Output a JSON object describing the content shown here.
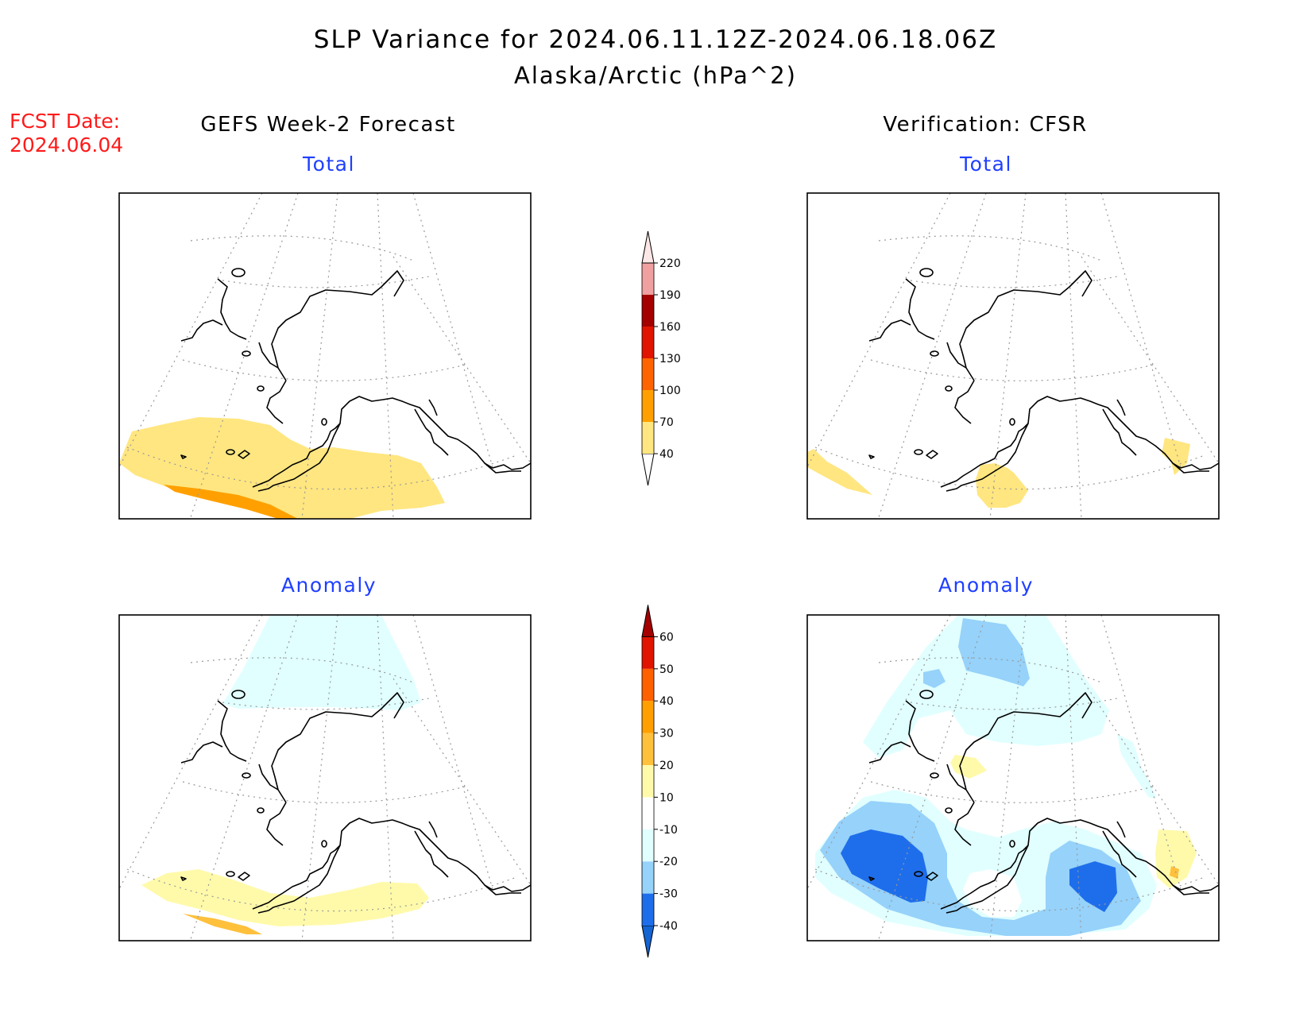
{
  "header": {
    "title": "SLP Variance for 2024.06.11.12Z-2024.06.18.06Z",
    "subtitle": "Alaska/Arctic (hPa^2)"
  },
  "fcst": {
    "line1": "FCST Date:",
    "line2": "2024.06.04"
  },
  "columns": {
    "left": "GEFS Week-2 Forecast",
    "right": "Verification: CFSR"
  },
  "panels": {
    "top_left": "Total",
    "top_right": "Total",
    "bottom_left": "Anomaly",
    "bottom_right": "Anomaly"
  },
  "legend_total": {
    "labels": [
      "40",
      "70",
      "100",
      "130",
      "160",
      "190",
      "220"
    ],
    "colors": [
      "#ffe680",
      "#ffa000",
      "#ff6400",
      "#e11400",
      "#a50000",
      "#f0a0a0",
      "#fde6e6"
    ]
  },
  "legend_anomaly": {
    "labels": [
      "-40",
      "-30",
      "-20",
      "-10",
      "10",
      "20",
      "30",
      "40",
      "50",
      "60"
    ],
    "colors": [
      "#1464d2",
      "#1e6eeb",
      "#96d2fa",
      "#e1ffff",
      "#ffffff",
      "#fffaaa",
      "#ffc03c",
      "#ffa000",
      "#ff6000",
      "#e11400",
      "#a50000"
    ]
  },
  "colors": {
    "yellow_light": "#ffe680",
    "orange": "#ffa000",
    "anom_pos1": "#fffaaa",
    "anom_pos2": "#ffc03c",
    "anom_neg1": "#e1ffff",
    "anom_neg2": "#96d2fa",
    "anom_neg3": "#1e6eeb",
    "fcst_red": "#ff1a1a",
    "panel_blue": "#1f3fff"
  }
}
